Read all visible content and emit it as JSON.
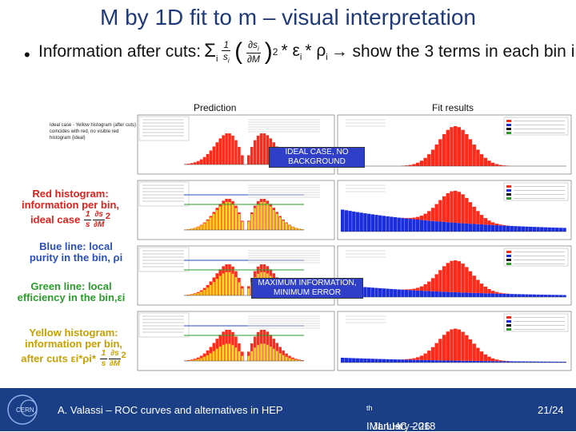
{
  "slide": {
    "title": "M by 1D fit to m – visual interpretation",
    "bullet": "•",
    "intro": "Information after cuts:",
    "sum_symbol": "Σ",
    "sum_index": "i",
    "frac_num": "∂s",
    "frac_num_sub": "i",
    "frac_den": "∂M",
    "pre_frac": "1",
    "pre_frac_den": "s",
    "pre_frac_den_sub": "i",
    "exp": "2",
    "mult1": "* ε",
    "eps_sub": "i",
    "mult2": "* ρ",
    "rho_sub": "i",
    "arrow_text": "→ show the 3 terms in each bin i"
  },
  "headers": {
    "prediction": "Prediction",
    "fit_results": "Fit results"
  },
  "left_note": "Ideal case - Yellow histogram (after cuts) coincides with red, no visible red histogram (ideal)",
  "labels": {
    "red": "Red histogram: information per bin, ideal case",
    "blue": "Blue line: local purity in the bin, ρi",
    "green": "Green line: local efficiency in the bin,εi",
    "yellow": "Yellow histogram: information per bin, after cuts εi*ρi*"
  },
  "overlays": {
    "ideal": "IDEAL CASE, NO BACKGROUND",
    "maxinfo": "MAXIMUM INFORMATION, MINIMUM ERROR"
  },
  "footer": {
    "author": "A. Valassi – ROC curves and alternatives in HEP",
    "event": "IML LHC – 26",
    "event_sup": "th",
    "event_tail": " January 2018",
    "page": "21/24"
  },
  "colors": {
    "footer_bg": "#1b3f87",
    "title": "#1f3a7a",
    "overlay": "#2f3fc8"
  }
}
